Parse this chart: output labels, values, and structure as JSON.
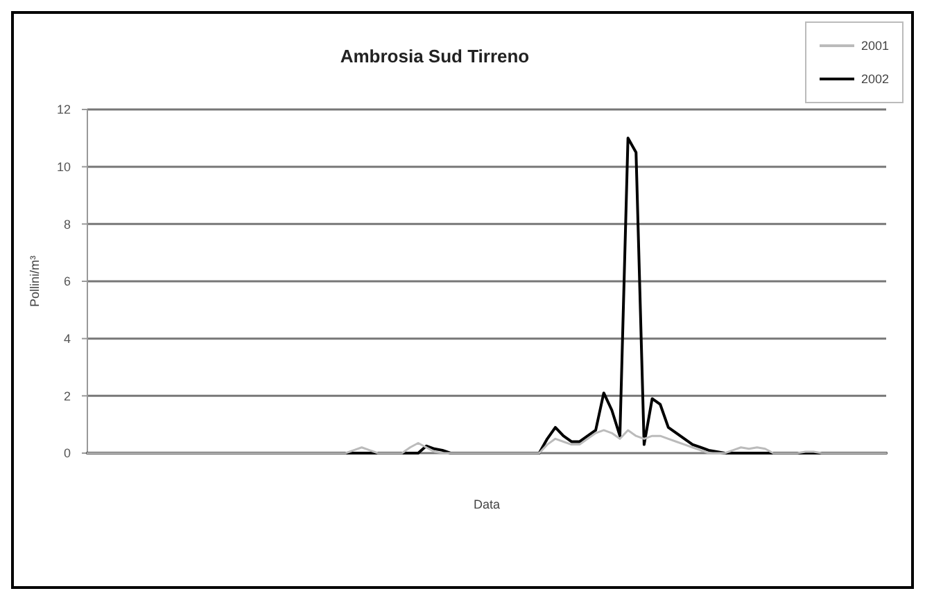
{
  "chart_data": {
    "type": "line",
    "title": "Ambrosia Sud Tirreno",
    "xlabel": "Data",
    "ylabel": "Pollini/m³",
    "categories": [
      null,
      null,
      null,
      null,
      null,
      null,
      null,
      null,
      null,
      null,
      null,
      null,
      null,
      null,
      null,
      null,
      null,
      null,
      null,
      null,
      null,
      null,
      null,
      null,
      null,
      null,
      null,
      null,
      null,
      null,
      null,
      null,
      null,
      null,
      null,
      null,
      null,
      null,
      null,
      null,
      null,
      null,
      null,
      null,
      null,
      null,
      null,
      null,
      null,
      null,
      null,
      null,
      null,
      null,
      null,
      null,
      null,
      null,
      null,
      null,
      null,
      null,
      null,
      null,
      null,
      null,
      null,
      null,
      null,
      null,
      null,
      null,
      null,
      null,
      null,
      null,
      null,
      null,
      null,
      null,
      null,
      null,
      null,
      null,
      null,
      null,
      null,
      null,
      null,
      null,
      null,
      null,
      null,
      null,
      null,
      null,
      null,
      null,
      null,
      null
    ],
    "series": [
      {
        "name": "2001",
        "color": "#bbbbbb",
        "values": [
          0,
          0,
          0,
          0,
          0,
          0,
          0,
          0,
          0,
          0,
          0,
          0,
          0,
          0,
          0,
          0,
          0,
          0,
          0,
          0,
          0,
          0,
          0,
          0,
          0,
          0,
          0,
          0,
          0,
          0,
          0,
          0,
          0,
          0.1,
          0.2,
          0.1,
          0,
          0,
          0,
          0,
          0.2,
          0.35,
          0.2,
          0.05,
          0,
          0,
          0,
          0,
          0,
          0,
          0,
          0,
          0,
          0,
          0,
          0,
          0,
          0.3,
          0.5,
          0.4,
          0.3,
          0.3,
          0.5,
          0.7,
          0.8,
          0.7,
          0.5,
          0.8,
          0.6,
          0.5,
          0.6,
          0.6,
          0.5,
          0.4,
          0.3,
          0.2,
          0.1,
          0,
          0,
          0,
          0.1,
          0.2,
          0.15,
          0.2,
          0.15,
          0,
          0,
          0,
          0,
          0.05,
          0.05,
          0,
          0,
          0,
          0,
          0,
          0,
          0,
          0,
          0
        ]
      },
      {
        "name": "2002",
        "color": "#000000",
        "values": [
          0,
          0,
          0,
          0,
          0,
          0,
          0,
          0,
          0,
          0,
          0,
          0,
          0,
          0,
          0,
          0,
          0,
          0,
          0,
          0,
          0,
          0,
          0,
          0,
          0,
          0,
          0,
          0,
          0,
          0,
          0,
          0,
          0,
          0,
          0,
          0,
          0,
          0,
          0,
          0,
          0,
          0,
          0.25,
          0.15,
          0.1,
          0,
          0,
          0,
          0,
          0,
          0,
          0,
          0,
          0,
          0,
          0,
          0,
          0.5,
          0.9,
          0.6,
          0.4,
          0.4,
          0.6,
          0.8,
          2.1,
          1.5,
          0.6,
          11,
          10.5,
          0.3,
          1.9,
          1.7,
          0.9,
          0.7,
          0.5,
          0.3,
          0.2,
          0.1,
          0.05,
          0,
          0,
          0,
          0,
          0,
          0,
          0,
          0,
          0,
          0,
          0,
          0,
          0,
          0,
          0,
          0,
          0,
          0,
          0,
          0,
          0
        ]
      }
    ],
    "ylim": [
      0,
      12
    ],
    "yticks": [
      0,
      2,
      4,
      6,
      8,
      10,
      12
    ],
    "grid": "y",
    "legend": "top right",
    "marker": "none",
    "line_style": "solid"
  }
}
